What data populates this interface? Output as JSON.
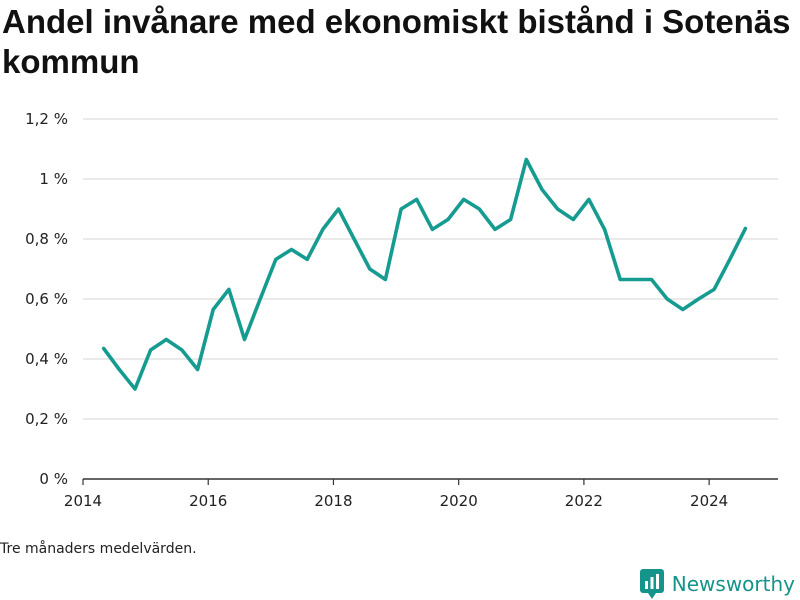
{
  "page": {
    "title": "Andel invånare med ekonomiskt bistånd i Sotenäs kommun",
    "note": "Tre månaders medelvärden.",
    "brand": "Newsworthy"
  },
  "colors": {
    "line": "#169b91",
    "grid": "#dddddd",
    "axis": "#333333",
    "brand": "#14948a"
  },
  "chart_data": {
    "type": "line",
    "title": "Andel invånare med ekonomiskt bistånd i Sotenäs kommun",
    "xlabel": "",
    "ylabel": "",
    "x_ticks": [
      "2014",
      "2016",
      "2018",
      "2020",
      "2022",
      "2024"
    ],
    "y_ticks": [
      "0 %",
      "0,2 %",
      "0,4 %",
      "0,6 %",
      "0,8 %",
      "1 %",
      "1,2 %"
    ],
    "xlim": [
      2014.0,
      2025.1
    ],
    "ylim": [
      0,
      1.2
    ],
    "grid": true,
    "series": [
      {
        "x": [
          2014.33,
          2014.58,
          2014.83,
          2015.08,
          2015.33,
          2015.58,
          2015.83,
          2016.08,
          2016.33,
          2016.58,
          2016.83,
          2017.08,
          2017.33,
          2017.58,
          2017.83,
          2018.08,
          2018.33,
          2018.58,
          2018.83,
          2019.08,
          2019.33,
          2019.58,
          2019.83,
          2020.08,
          2020.33,
          2020.58,
          2020.83,
          2021.08,
          2021.33,
          2021.58,
          2021.83,
          2022.08,
          2022.33,
          2022.58,
          2022.83,
          2023.08,
          2023.33,
          2023.58,
          2023.83,
          2024.08,
          2024.33,
          2024.58
        ],
        "y": [
          0.435,
          0.365,
          0.3,
          0.43,
          0.465,
          0.43,
          0.365,
          0.565,
          0.632,
          0.465,
          0.6,
          0.732,
          0.765,
          0.732,
          0.832,
          0.9,
          0.8,
          0.7,
          0.665,
          0.9,
          0.932,
          0.832,
          0.865,
          0.932,
          0.9,
          0.832,
          0.865,
          1.065,
          0.965,
          0.9,
          0.865,
          0.932,
          0.832,
          0.665,
          0.665,
          0.665,
          0.6,
          0.565,
          0.6,
          0.632,
          0.732,
          0.835
        ]
      }
    ]
  }
}
